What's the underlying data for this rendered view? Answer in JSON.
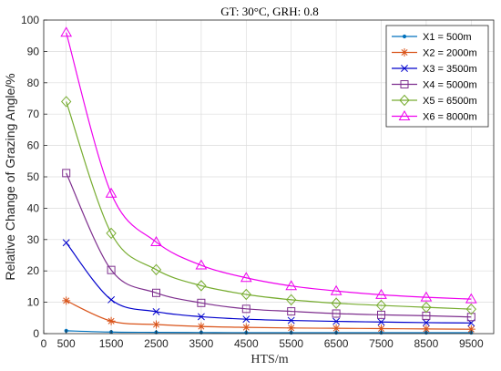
{
  "chart_data": {
    "type": "line",
    "title": "GT: 30°C, GRH: 0.8",
    "xlabel": "HTS/m",
    "ylabel": "Relative Change of Grazing Angle/%",
    "xlim": [
      0,
      10000
    ],
    "ylim": [
      0,
      100
    ],
    "xticks": [
      0,
      500,
      1500,
      2500,
      3500,
      4500,
      5500,
      6500,
      7500,
      8500,
      9500
    ],
    "yticks": [
      0,
      10,
      20,
      30,
      40,
      50,
      60,
      70,
      80,
      90,
      100
    ],
    "grid": true,
    "legend_position": "top-right",
    "x": [
      500,
      1500,
      2500,
      3500,
      4500,
      5500,
      6500,
      7500,
      8500,
      9500
    ],
    "series": [
      {
        "name": "X1 = 500m",
        "color": "#0072BD",
        "marker": "dot",
        "values": [
          0.9,
          0.5,
          0.4,
          0.35,
          0.3,
          0.3,
          0.3,
          0.3,
          0.3,
          0.3
        ]
      },
      {
        "name": "X2 = 2000m",
        "color": "#D95319",
        "marker": "asterisk",
        "values": [
          10.5,
          4.0,
          2.9,
          2.3,
          2.0,
          1.8,
          1.7,
          1.6,
          1.5,
          1.4
        ]
      },
      {
        "name": "X3 = 3500m",
        "color": "#0000CC",
        "marker": "x",
        "values": [
          29.0,
          10.8,
          7.0,
          5.4,
          4.6,
          4.2,
          3.9,
          3.7,
          3.5,
          3.4
        ]
      },
      {
        "name": "X4 = 5000m",
        "color": "#7E2F8E",
        "marker": "square",
        "values": [
          51.2,
          20.3,
          13.0,
          9.8,
          7.9,
          7.1,
          6.4,
          6.0,
          5.7,
          5.3
        ]
      },
      {
        "name": "X5 = 6500m",
        "color": "#77AC30",
        "marker": "diamond",
        "values": [
          74.0,
          32.0,
          20.4,
          15.3,
          12.5,
          10.8,
          9.7,
          9.0,
          8.4,
          7.8
        ]
      },
      {
        "name": "X6 = 8000m",
        "color": "#EE00EE",
        "marker": "triangle",
        "values": [
          96.0,
          44.7,
          29.2,
          21.8,
          17.8,
          15.2,
          13.6,
          12.4,
          11.6,
          11.0
        ]
      }
    ]
  }
}
